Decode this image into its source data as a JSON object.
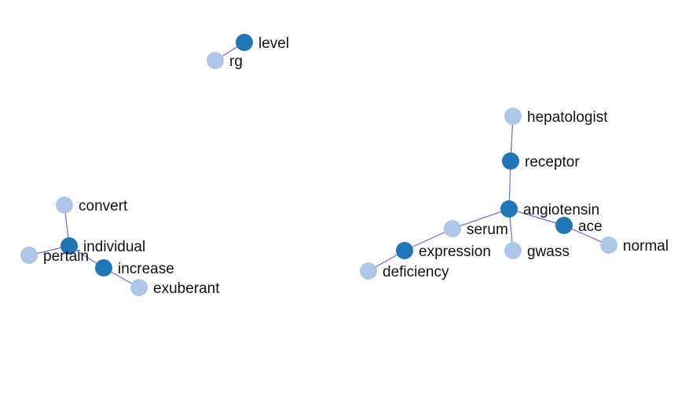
{
  "colors": {
    "primary_node": "#2177b5",
    "secondary_node": "#aec7e8",
    "edge": "#6a6adf",
    "label": "#111111"
  },
  "nodes": [
    {
      "id": "level",
      "label": "level",
      "group": "primary"
    },
    {
      "id": "rg",
      "label": "rg",
      "group": "secondary"
    },
    {
      "id": "hepatologist",
      "label": "hepatologist",
      "group": "secondary"
    },
    {
      "id": "receptor",
      "label": "receptor",
      "group": "primary"
    },
    {
      "id": "angiotensin",
      "label": "angiotensin",
      "group": "primary"
    },
    {
      "id": "ace",
      "label": "ace",
      "group": "primary"
    },
    {
      "id": "normal",
      "label": "normal",
      "group": "secondary"
    },
    {
      "id": "serum",
      "label": "serum",
      "group": "secondary"
    },
    {
      "id": "gwass",
      "label": "gwass",
      "group": "secondary"
    },
    {
      "id": "expression",
      "label": "expression",
      "group": "primary"
    },
    {
      "id": "deficiency",
      "label": "deficiency",
      "group": "secondary"
    },
    {
      "id": "convert",
      "label": "convert",
      "group": "secondary"
    },
    {
      "id": "individual",
      "label": "individual",
      "group": "primary"
    },
    {
      "id": "pertain",
      "label": "pertain",
      "group": "secondary"
    },
    {
      "id": "increase",
      "label": "increase",
      "group": "primary"
    },
    {
      "id": "exuberant",
      "label": "exuberant",
      "group": "secondary"
    }
  ],
  "edges": [
    {
      "source": "level",
      "target": "rg"
    },
    {
      "source": "hepatologist",
      "target": "receptor"
    },
    {
      "source": "receptor",
      "target": "angiotensin"
    },
    {
      "source": "angiotensin",
      "target": "ace"
    },
    {
      "source": "ace",
      "target": "normal"
    },
    {
      "source": "angiotensin",
      "target": "serum"
    },
    {
      "source": "angiotensin",
      "target": "gwass"
    },
    {
      "source": "serum",
      "target": "expression"
    },
    {
      "source": "expression",
      "target": "deficiency"
    },
    {
      "source": "convert",
      "target": "individual"
    },
    {
      "source": "individual",
      "target": "pertain"
    },
    {
      "source": "individual",
      "target": "increase"
    },
    {
      "source": "increase",
      "target": "exuberant"
    }
  ]
}
